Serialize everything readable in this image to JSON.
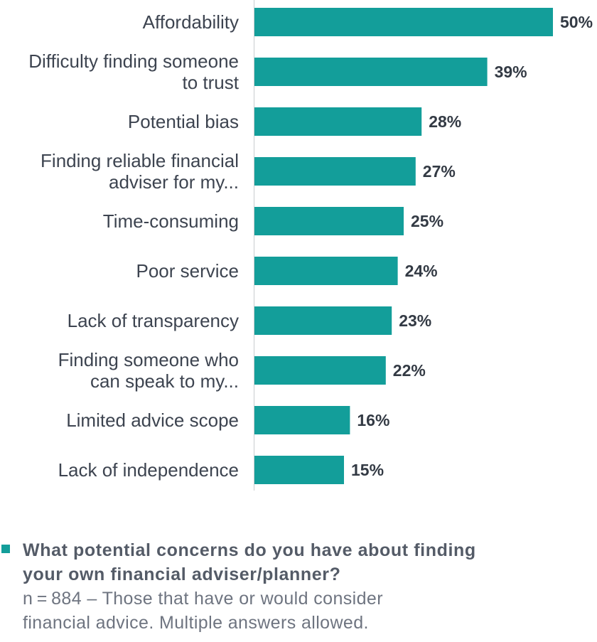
{
  "chart_data": {
    "type": "bar",
    "orientation": "horizontal",
    "categories": [
      [
        "Affordability"
      ],
      [
        "Difficulty finding someone",
        "to trust"
      ],
      [
        "Potential bias"
      ],
      [
        "Finding reliable financial",
        "adviser for my..."
      ],
      [
        "Time-consuming"
      ],
      [
        "Poor service"
      ],
      [
        "Lack of transparency"
      ],
      [
        "Finding someone who",
        "can speak to my..."
      ],
      [
        "Limited advice scope"
      ],
      [
        "Lack of independence"
      ]
    ],
    "values": [
      50,
      39,
      28,
      27,
      25,
      24,
      23,
      22,
      16,
      15
    ],
    "value_labels": [
      "50%",
      "39%",
      "28%",
      "27%",
      "25%",
      "24%",
      "23%",
      "22%",
      "16%",
      "15%"
    ],
    "xlim": [
      0,
      50
    ],
    "bar_color": "#139e9a",
    "legend": "bottom-left"
  },
  "legend": {
    "marker_color": "#139e9a",
    "question": "What potential concerns do you have about finding your own financial adviser/planner?",
    "note": "n = 884 – Those that have or would consider financial advice. Multiple answers allowed."
  }
}
